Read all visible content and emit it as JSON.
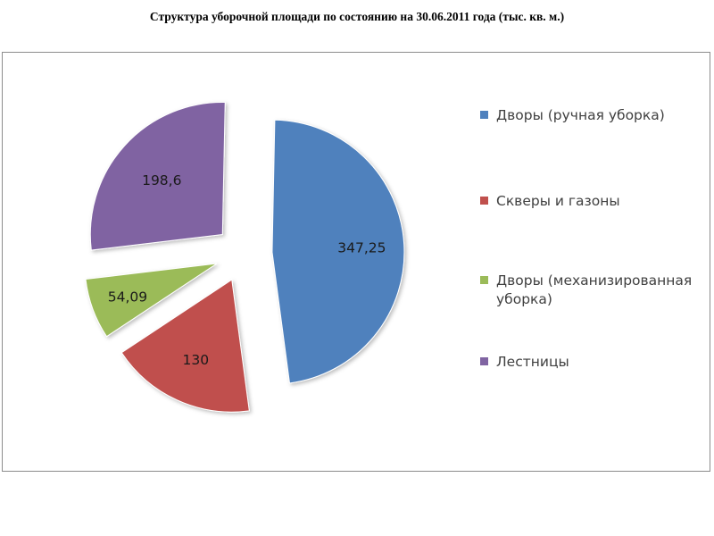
{
  "chart_data": {
    "type": "pie",
    "title": "Структура уборочной площади по состоянию на 30.06.2011 года (тыс. кв. м.)",
    "exploded": true,
    "legend_position": "right",
    "slices": [
      {
        "name": "Дворы (ручная уборка)",
        "value": 347.25,
        "label": "347,25",
        "color": "#4f81bd"
      },
      {
        "name": "Скверы и газоны",
        "value": 130,
        "label": "130",
        "color": "#c0504d"
      },
      {
        "name": "Дворы (механизированная уборка)",
        "value": 54.09,
        "label": "54,09",
        "color": "#9bbb59"
      },
      {
        "name": "Лестницы",
        "value": 198.6,
        "label": "198,6",
        "color": "#8064a2"
      }
    ]
  }
}
